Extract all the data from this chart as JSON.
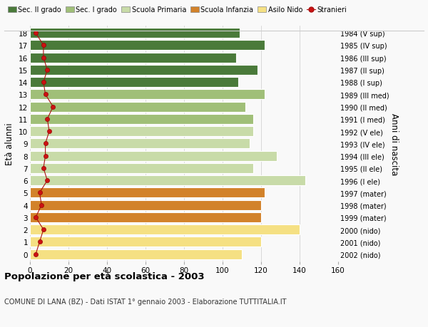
{
  "ages": [
    0,
    1,
    2,
    3,
    4,
    5,
    6,
    7,
    8,
    9,
    10,
    11,
    12,
    13,
    14,
    15,
    16,
    17,
    18
  ],
  "right_labels": [
    "2002 (nido)",
    "2001 (nido)",
    "2000 (nido)",
    "1999 (mater)",
    "1998 (mater)",
    "1997 (mater)",
    "1996 (I ele)",
    "1995 (II ele)",
    "1994 (III ele)",
    "1993 (IV ele)",
    "1992 (V ele)",
    "1991 (I med)",
    "1990 (II med)",
    "1989 (III med)",
    "1988 (I sup)",
    "1987 (II sup)",
    "1986 (III sup)",
    "1985 (IV sup)",
    "1984 (V sup)"
  ],
  "bar_values": [
    110,
    120,
    140,
    120,
    120,
    122,
    143,
    116,
    128,
    114,
    116,
    116,
    112,
    122,
    108,
    118,
    107,
    122,
    109
  ],
  "bar_colors": [
    "#f5e083",
    "#f5e083",
    "#f5e083",
    "#d2822a",
    "#d2822a",
    "#d2822a",
    "#c8dba8",
    "#c8dba8",
    "#c8dba8",
    "#c8dba8",
    "#c8dba8",
    "#a0bf78",
    "#a0bf78",
    "#a0bf78",
    "#4a7a3a",
    "#4a7a3a",
    "#4a7a3a",
    "#4a7a3a",
    "#4a7a3a"
  ],
  "stranieri_values": [
    3,
    5,
    7,
    3,
    6,
    5,
    9,
    7,
    8,
    8,
    10,
    9,
    12,
    8,
    7,
    9,
    7,
    7,
    3
  ],
  "legend_labels": [
    "Sec. II grado",
    "Sec. I grado",
    "Scuola Primaria",
    "Scuola Infanzia",
    "Asilo Nido",
    "Stranieri"
  ],
  "legend_colors": [
    "#4a7a3a",
    "#a0bf78",
    "#c8dba8",
    "#d2822a",
    "#f5e083",
    "#cc1111"
  ],
  "title": "Popolazione per età scolastica - 2003",
  "subtitle": "COMUNE DI LANA (BZ) - Dati ISTAT 1° gennaio 2003 - Elaborazione TUTTITALIA.IT",
  "xlabel_right": "Anni di nascita",
  "ylabel_left": "Età alunni",
  "xlim": [
    0,
    160
  ],
  "xticks": [
    0,
    20,
    40,
    60,
    80,
    100,
    120,
    140,
    160
  ],
  "background_color": "#f9f9f9",
  "bar_edge_color": "white",
  "grid_color": "#cccccc"
}
